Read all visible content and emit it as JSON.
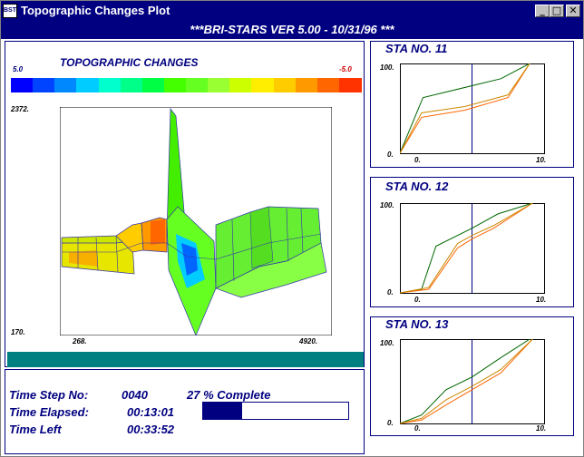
{
  "window": {
    "title": "Topographic Changes Plot",
    "icon": "bst-app-icon",
    "icon_text": "BST",
    "minimize_label": "_",
    "maximize_label": "□",
    "close_label": "✕"
  },
  "banner": "***BRI-STARS  VER 5.00 - 10/31/96 ***",
  "main_plot": {
    "title": "TOPOGRAPHIC CHANGES",
    "scale_min_label": "5.0",
    "scale_max_label": "-5.0",
    "scale_colors": [
      "#0000ff",
      "#0044ff",
      "#0088ff",
      "#00ccff",
      "#00ffcc",
      "#00ff88",
      "#00ff44",
      "#44ff00",
      "#66ff22",
      "#99ff33",
      "#ccff00",
      "#ffee00",
      "#ffcc00",
      "#ff9900",
      "#ff6600",
      "#ff3300"
    ],
    "y_top_label": "2372.",
    "y_bottom_label": "170.",
    "x_left_label": "268.",
    "x_right_label": "4920."
  },
  "stations": [
    {
      "label": "STA NO. 11",
      "y_max_label": "100.",
      "y_min_label": "0.",
      "x_min_label": "0.",
      "x_max_label": "10.",
      "chart_data": {
        "type": "line",
        "xlim": [
          0,
          10
        ],
        "ylim": [
          0,
          100
        ],
        "series": [
          {
            "color": "#006600",
            "x": [
              0,
              1.6,
              7,
              9
            ],
            "y": [
              0,
              62,
              83,
              100
            ]
          },
          {
            "color": "#ff6600",
            "x": [
              0,
              1.5,
              4.5,
              7.5,
              9
            ],
            "y": [
              0,
              40,
              48,
              62,
              100
            ]
          },
          {
            "color": "#cc8800",
            "x": [
              0,
              1.5,
              4.5,
              7.5,
              9
            ],
            "y": [
              0,
              45,
              52,
              65,
              100
            ]
          }
        ],
        "vline_x": 5
      }
    },
    {
      "label": "STA NO. 12",
      "y_max_label": "100.",
      "y_min_label": "0.",
      "x_min_label": "0.",
      "x_max_label": "10.",
      "chart_data": {
        "type": "line",
        "xlim": [
          0,
          10
        ],
        "ylim": [
          0,
          100
        ],
        "series": [
          {
            "color": "#006600",
            "x": [
              0,
              1.5,
              2.5,
              5,
              6.8,
              9.2
            ],
            "y": [
              0,
              4,
              52,
              72,
              88,
              100
            ]
          },
          {
            "color": "#ff6600",
            "x": [
              0,
              2,
              4,
              5,
              6.5,
              9.2
            ],
            "y": [
              0,
              4,
              50,
              60,
              72,
              100
            ]
          },
          {
            "color": "#cc8800",
            "x": [
              0,
              2,
              4,
              5,
              6.5,
              9.2
            ],
            "y": [
              0,
              6,
              55,
              64,
              75,
              100
            ]
          }
        ],
        "vline_x": 5
      }
    },
    {
      "label": "STA NO. 13",
      "y_max_label": "100.",
      "y_min_label": "0.",
      "x_min_label": "0.",
      "x_max_label": "10.",
      "chart_data": {
        "type": "line",
        "xlim": [
          0,
          10
        ],
        "ylim": [
          0,
          100
        ],
        "series": [
          {
            "color": "#006600",
            "x": [
              0,
              1.5,
              3.2,
              5,
              7,
              9
            ],
            "y": [
              0,
              10,
              40,
              55,
              78,
              100
            ]
          },
          {
            "color": "#ff6600",
            "x": [
              0,
              1.5,
              3.2,
              5,
              7,
              9.2
            ],
            "y": [
              0,
              4,
              22,
              40,
              60,
              100
            ]
          },
          {
            "color": "#cc8800",
            "x": [
              0,
              1.5,
              3.2,
              5,
              7,
              9.2
            ],
            "y": [
              0,
              6,
              28,
              44,
              64,
              100
            ]
          }
        ],
        "vline_x": 5
      }
    }
  ],
  "status": {
    "time_step_label": "Time Step No:",
    "time_step_value": "0040",
    "percent_complete": "27 % Complete",
    "elapsed_label": "Time Elapsed:",
    "elapsed_value": "00:13:01",
    "left_label": "Time Left",
    "left_value": "00:33:52",
    "progress_fraction": 0.27
  }
}
